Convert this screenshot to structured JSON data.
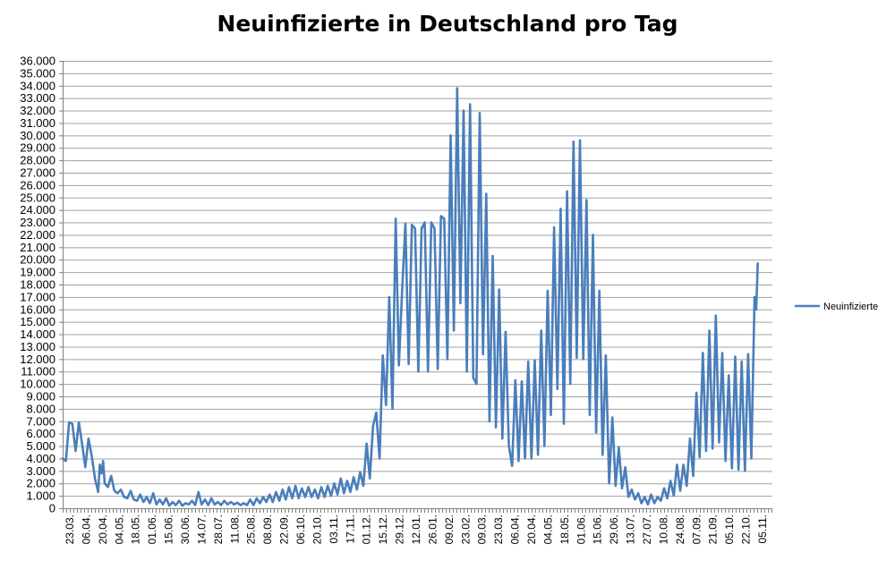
{
  "chart_data": {
    "type": "line",
    "title": "Neuinfizierte in Deutschland pro Tag",
    "xlabel": "",
    "ylabel": "",
    "ylim": [
      0,
      36000
    ],
    "grid": true,
    "legend_position": "right",
    "y_ticks": [
      "0",
      "1.000",
      "2.000",
      "3.000",
      "4.000",
      "5.000",
      "6.000",
      "7.000",
      "8.000",
      "9.000",
      "10.000",
      "11.000",
      "12.000",
      "13.000",
      "14.000",
      "15.000",
      "16.000",
      "17.000",
      "18.000",
      "19.000",
      "20.000",
      "21.000",
      "22.000",
      "23.000",
      "24.000",
      "25.000",
      "26.000",
      "27.000",
      "28.000",
      "29.000",
      "30.000",
      "31.000",
      "32.000",
      "33.000",
      "34.000",
      "35.000",
      "36.000"
    ],
    "x_tick_labels": [
      "23.03.",
      "06.04.",
      "20.04.",
      "04.05.",
      "18.05.",
      "01.06.",
      "15.06.",
      "30.06.",
      "14.07.",
      "28.07.",
      "11.08.",
      "25.08.",
      "08.09.",
      "22.09.",
      "06.10.",
      "20.10.",
      "03.11.",
      "17.11.",
      "01.12.",
      "15.12.",
      "29.12.",
      "12.01.",
      "26.01.",
      "09.02.",
      "23.02.",
      "09.03.",
      "23.03.",
      "06.04.",
      "20.04.",
      "04.05.",
      "18.05.",
      "01.06.",
      "15.06.",
      "29.06.",
      "13.07.",
      "27.07.",
      "10.08.",
      "24.08.",
      "07.09.",
      "21.09.",
      "05.10.",
      "22.10.",
      "05.11."
    ],
    "series": [
      {
        "name": "Neuinfizierte",
        "color": "#4a7ebb",
        "key_points": [
          [
            0,
            4000
          ],
          [
            2,
            3800
          ],
          [
            4,
            6900
          ],
          [
            6,
            6800
          ],
          [
            8,
            4600
          ],
          [
            10,
            6900
          ],
          [
            12,
            5200
          ],
          [
            14,
            3300
          ],
          [
            16,
            5600
          ],
          [
            18,
            4200
          ],
          [
            20,
            2400
          ],
          [
            22,
            1300
          ],
          [
            23,
            3500
          ],
          [
            24,
            2800
          ],
          [
            25,
            3800
          ],
          [
            26,
            2000
          ],
          [
            28,
            1700
          ],
          [
            30,
            2600
          ],
          [
            32,
            1400
          ],
          [
            34,
            1200
          ],
          [
            36,
            1500
          ],
          [
            38,
            900
          ],
          [
            40,
            800
          ],
          [
            42,
            1400
          ],
          [
            44,
            700
          ],
          [
            46,
            600
          ],
          [
            48,
            1100
          ],
          [
            50,
            500
          ],
          [
            52,
            900
          ],
          [
            54,
            400
          ],
          [
            56,
            1200
          ],
          [
            58,
            300
          ],
          [
            60,
            700
          ],
          [
            62,
            300
          ],
          [
            64,
            800
          ],
          [
            66,
            200
          ],
          [
            68,
            500
          ],
          [
            70,
            250
          ],
          [
            72,
            600
          ],
          [
            74,
            200
          ],
          [
            76,
            400
          ],
          [
            78,
            300
          ],
          [
            80,
            600
          ],
          [
            82,
            250
          ],
          [
            84,
            1300
          ],
          [
            86,
            300
          ],
          [
            88,
            700
          ],
          [
            90,
            250
          ],
          [
            92,
            800
          ],
          [
            94,
            300
          ],
          [
            96,
            500
          ],
          [
            98,
            250
          ],
          [
            100,
            600
          ],
          [
            102,
            300
          ],
          [
            104,
            500
          ],
          [
            106,
            300
          ],
          [
            108,
            450
          ],
          [
            110,
            250
          ],
          [
            112,
            400
          ],
          [
            114,
            250
          ],
          [
            116,
            700
          ],
          [
            118,
            250
          ],
          [
            120,
            800
          ],
          [
            122,
            400
          ],
          [
            124,
            900
          ],
          [
            126,
            500
          ],
          [
            128,
            1100
          ],
          [
            130,
            500
          ],
          [
            132,
            1300
          ],
          [
            134,
            600
          ],
          [
            136,
            1500
          ],
          [
            138,
            700
          ],
          [
            140,
            1700
          ],
          [
            142,
            800
          ],
          [
            144,
            1800
          ],
          [
            146,
            800
          ],
          [
            148,
            1600
          ],
          [
            150,
            900
          ],
          [
            152,
            1700
          ],
          [
            154,
            900
          ],
          [
            156,
            1500
          ],
          [
            158,
            800
          ],
          [
            160,
            1700
          ],
          [
            162,
            900
          ],
          [
            164,
            1800
          ],
          [
            166,
            1000
          ],
          [
            168,
            2000
          ],
          [
            170,
            1100
          ],
          [
            172,
            2400
          ],
          [
            174,
            1200
          ],
          [
            176,
            2200
          ],
          [
            178,
            1300
          ],
          [
            180,
            2500
          ],
          [
            182,
            1500
          ],
          [
            184,
            2900
          ],
          [
            186,
            1800
          ],
          [
            188,
            5200
          ],
          [
            190,
            2400
          ],
          [
            192,
            6600
          ],
          [
            194,
            7700
          ],
          [
            196,
            4000
          ],
          [
            198,
            12300
          ],
          [
            200,
            8300
          ],
          [
            202,
            17000
          ],
          [
            204,
            8000
          ],
          [
            206,
            23300
          ],
          [
            208,
            11500
          ],
          [
            210,
            17500
          ],
          [
            212,
            22900
          ],
          [
            214,
            11600
          ],
          [
            216,
            22800
          ],
          [
            218,
            22500
          ],
          [
            220,
            11000
          ],
          [
            222,
            22500
          ],
          [
            224,
            23000
          ],
          [
            226,
            11000
          ],
          [
            228,
            23000
          ],
          [
            230,
            22500
          ],
          [
            232,
            11200
          ],
          [
            234,
            23500
          ],
          [
            236,
            23300
          ],
          [
            238,
            12000
          ],
          [
            240,
            30000
          ],
          [
            242,
            14300
          ],
          [
            244,
            33800
          ],
          [
            246,
            16500
          ],
          [
            248,
            32000
          ],
          [
            250,
            11000
          ],
          [
            252,
            32500
          ],
          [
            254,
            10500
          ],
          [
            256,
            10000
          ],
          [
            258,
            31800
          ],
          [
            260,
            12400
          ],
          [
            262,
            25300
          ],
          [
            264,
            7000
          ],
          [
            266,
            20300
          ],
          [
            268,
            6500
          ],
          [
            270,
            17600
          ],
          [
            272,
            5600
          ],
          [
            274,
            14200
          ],
          [
            276,
            5000
          ],
          [
            278,
            3400
          ],
          [
            280,
            10300
          ],
          [
            282,
            3800
          ],
          [
            284,
            10200
          ],
          [
            286,
            4000
          ],
          [
            288,
            11800
          ],
          [
            290,
            4000
          ],
          [
            292,
            11900
          ],
          [
            294,
            4300
          ],
          [
            296,
            14300
          ],
          [
            298,
            5000
          ],
          [
            300,
            17500
          ],
          [
            302,
            7500
          ],
          [
            304,
            22600
          ],
          [
            306,
            9600
          ],
          [
            308,
            24100
          ],
          [
            310,
            6800
          ],
          [
            312,
            25500
          ],
          [
            314,
            10000
          ],
          [
            316,
            29500
          ],
          [
            318,
            12100
          ],
          [
            320,
            29600
          ],
          [
            322,
            12000
          ],
          [
            324,
            24800
          ],
          [
            326,
            7500
          ],
          [
            328,
            22000
          ],
          [
            330,
            6100
          ],
          [
            332,
            17500
          ],
          [
            334,
            4300
          ],
          [
            336,
            12300
          ],
          [
            338,
            2000
          ],
          [
            340,
            7300
          ],
          [
            342,
            1800
          ],
          [
            344,
            4900
          ],
          [
            346,
            1600
          ],
          [
            348,
            3300
          ],
          [
            350,
            900
          ],
          [
            352,
            1500
          ],
          [
            354,
            700
          ],
          [
            356,
            1200
          ],
          [
            358,
            400
          ],
          [
            360,
            900
          ],
          [
            362,
            300
          ],
          [
            364,
            1100
          ],
          [
            366,
            400
          ],
          [
            368,
            900
          ],
          [
            370,
            600
          ],
          [
            372,
            1600
          ],
          [
            374,
            800
          ],
          [
            376,
            2200
          ],
          [
            378,
            1000
          ],
          [
            380,
            3500
          ],
          [
            382,
            1400
          ],
          [
            384,
            3500
          ],
          [
            386,
            1800
          ],
          [
            388,
            5600
          ],
          [
            390,
            2600
          ],
          [
            392,
            9300
          ],
          [
            394,
            4100
          ],
          [
            396,
            12500
          ],
          [
            398,
            4600
          ],
          [
            400,
            14300
          ],
          [
            402,
            4800
          ],
          [
            404,
            15500
          ],
          [
            406,
            5300
          ],
          [
            408,
            12500
          ],
          [
            410,
            3800
          ],
          [
            412,
            10700
          ],
          [
            414,
            3200
          ],
          [
            416,
            12200
          ],
          [
            418,
            3100
          ],
          [
            420,
            11800
          ],
          [
            422,
            3000
          ],
          [
            424,
            12400
          ],
          [
            426,
            4000
          ],
          [
            428,
            17000
          ],
          [
            429,
            16000
          ],
          [
            430,
            19700
          ]
        ]
      }
    ]
  }
}
